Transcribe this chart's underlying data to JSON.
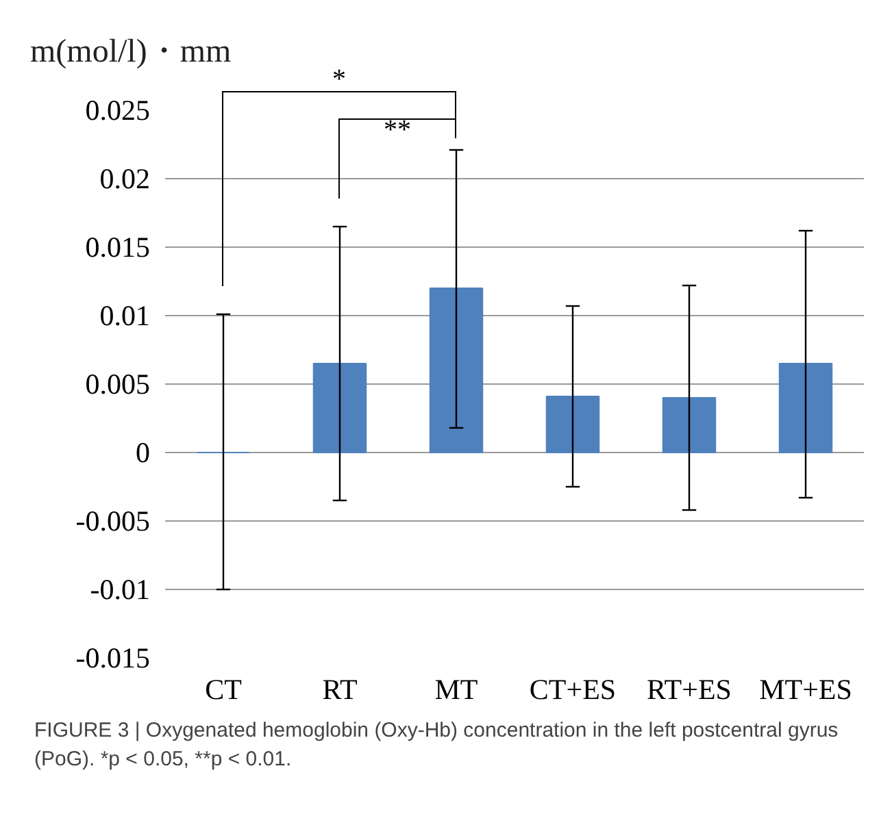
{
  "chart_data": {
    "type": "bar",
    "ylabel": "m(mol/l)・mm",
    "categories": [
      "CT",
      "RT",
      "MT",
      "CT+ES",
      "RT+ES",
      "MT+ES"
    ],
    "values": [
      0,
      0.0065,
      0.012,
      0.0041,
      0.004,
      0.0065
    ],
    "errors": [
      [
        -0.01,
        0.0101
      ],
      [
        -0.0035,
        0.0165
      ],
      [
        0.0018,
        0.0221
      ],
      [
        -0.0025,
        0.0107
      ],
      [
        -0.0042,
        0.0122
      ],
      [
        -0.0033,
        0.0162
      ]
    ],
    "color": "#4f81bd",
    "ylim": [
      -0.015,
      0.025
    ],
    "yticks": [
      -0.015,
      -0.01,
      -0.005,
      0,
      0.005,
      0.01,
      0.015,
      0.02,
      0.025
    ],
    "grid": "y",
    "annotations": [
      "*",
      "**",
      "FIGURE 3 | Oxygenated hemoglobin (Oxy-Hb) concentration in the left postcentral gyrus (PoG). *p < 0.05, **p < 0.01."
    ]
  }
}
